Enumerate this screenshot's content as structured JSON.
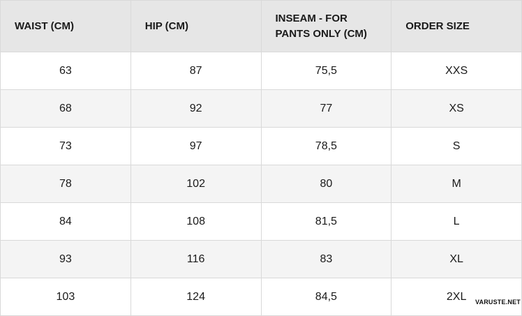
{
  "headers": [
    "WAIST (CM)",
    "HIP (CM)",
    "INSEAM - FOR PANTS ONLY (CM)",
    "ORDER SIZE"
  ],
  "rows": [
    [
      "63",
      "87",
      "75,5",
      "XXS"
    ],
    [
      "68",
      "92",
      "77",
      "XS"
    ],
    [
      "73",
      "97",
      "78,5",
      "S"
    ],
    [
      "78",
      "102",
      "80",
      "M"
    ],
    [
      "84",
      "108",
      "81,5",
      "L"
    ],
    [
      "93",
      "116",
      "83",
      "XL"
    ],
    [
      "103",
      "124",
      "84,5",
      "2XL"
    ]
  ],
  "watermark": "VARUSTE.NET"
}
